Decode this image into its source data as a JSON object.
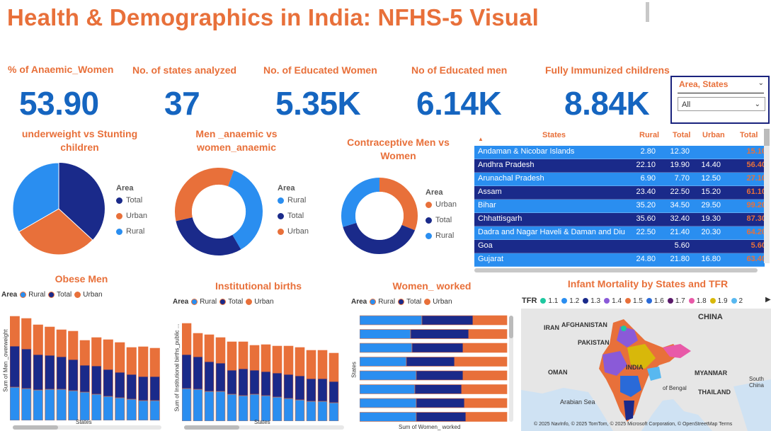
{
  "title": "Health & Demographics in India: NFHS-5 Visual",
  "kpis": [
    {
      "label": "% of Anaemic_Women",
      "value": "53.90"
    },
    {
      "label": "No. of states analyzed",
      "value": "37"
    },
    {
      "label": "No. of Educated Women",
      "value": "5.35K"
    },
    {
      "label": "No of Educated men",
      "value": "6.14K"
    },
    {
      "label": "Fully Immunized childrens",
      "value": "8.84K"
    }
  ],
  "slicer": {
    "header": "Area, States",
    "selected": "All"
  },
  "colors": {
    "orange": "#E8703A",
    "navy": "#1a2a8a",
    "blue": "#2a8ef0",
    "title_blue": "#1565C0"
  },
  "donuts": [
    {
      "title": "underweight vs Stunting children",
      "legend_title": "Area",
      "legend": [
        {
          "name": "Total",
          "color": "#1a2a8a"
        },
        {
          "name": "Urban",
          "color": "#E8703A"
        },
        {
          "name": "Rural",
          "color": "#2a8ef0"
        }
      ]
    },
    {
      "title": "Men _anaemic vs women_anaemic",
      "legend_title": "Area",
      "legend": [
        {
          "name": "Rural",
          "color": "#2a8ef0"
        },
        {
          "name": "Total",
          "color": "#1a2a8a"
        },
        {
          "name": "Urban",
          "color": "#E8703A"
        }
      ]
    },
    {
      "title": "Contraceptive Men vs Women",
      "legend_title": "Area",
      "legend": [
        {
          "name": "Urban",
          "color": "#E8703A"
        },
        {
          "name": "Total",
          "color": "#1a2a8a"
        },
        {
          "name": "Rural",
          "color": "#2a8ef0"
        }
      ]
    }
  ],
  "table": {
    "headers": [
      "States",
      "Rural",
      "Total",
      "Urban",
      "Total"
    ],
    "rows": [
      {
        "state": "Andaman & Nicobar Islands",
        "rural": "2.80",
        "total": "12.30",
        "urban": "",
        "total2": "15.10"
      },
      {
        "state": "Andhra Pradesh",
        "rural": "22.10",
        "total": "19.90",
        "urban": "14.40",
        "total2": "56.40"
      },
      {
        "state": "Arunachal Pradesh",
        "rural": "6.90",
        "total": "7.70",
        "urban": "12.50",
        "total2": "27.10"
      },
      {
        "state": "Assam",
        "rural": "23.40",
        "total": "22.50",
        "urban": "15.20",
        "total2": "61.10"
      },
      {
        "state": "Bihar",
        "rural": "35.20",
        "total": "34.50",
        "urban": "29.50",
        "total2": "99.20"
      },
      {
        "state": "Chhattisgarh",
        "rural": "35.60",
        "total": "32.40",
        "urban": "19.30",
        "total2": "87.30"
      },
      {
        "state": "Dadra and Nagar Haveli & Daman and Diu",
        "rural": "22.50",
        "total": "21.40",
        "urban": "20.30",
        "total2": "64.20"
      },
      {
        "state": "Goa",
        "rural": "",
        "total": "5.60",
        "urban": "",
        "total2": "5.60"
      },
      {
        "state": "Gujarat",
        "rural": "24.80",
        "total": "21.80",
        "urban": "16.80",
        "total2": "63.40"
      }
    ]
  },
  "bar_charts": [
    {
      "title": "Obese Men",
      "legend_title": "Area",
      "legend": [
        "Rural",
        "Total",
        "Urban"
      ],
      "ylabel": "Sum of Men _overweight",
      "xlabel": "States"
    },
    {
      "title": "Institutional births",
      "legend_title": "Area",
      "legend": [
        "Rural",
        "Total",
        "Urban"
      ],
      "ylabel": "Sum of Institutional births_public ...",
      "xlabel": "States"
    },
    {
      "title": "Women_ worked",
      "legend_title": "Area",
      "legend": [
        "Rural",
        "Total",
        "Urban"
      ],
      "ylabel": "States",
      "xlabel": "Sum of Women_ worked"
    }
  ],
  "chart_data": [
    {
      "type": "pie",
      "title": "underweight vs Stunting children",
      "series": [
        {
          "name": "Total",
          "values": [
            33.3
          ]
        },
        {
          "name": "Urban",
          "values": [
            30.0
          ]
        },
        {
          "name": "Rural",
          "values": [
            36.7
          ]
        }
      ]
    },
    {
      "type": "pie",
      "title": "Men _anaemic vs women_anaemic",
      "series": [
        {
          "name": "Rural",
          "values": [
            36
          ]
        },
        {
          "name": "Total",
          "values": [
            30
          ]
        },
        {
          "name": "Urban",
          "values": [
            34
          ]
        }
      ]
    },
    {
      "type": "pie",
      "title": "Contraceptive Men vs Women",
      "series": [
        {
          "name": "Urban",
          "values": [
            31
          ]
        },
        {
          "name": "Total",
          "values": [
            39
          ]
        },
        {
          "name": "Rural",
          "values": [
            30
          ]
        }
      ]
    }
  ],
  "map": {
    "title": "Infant Mortality by States and TFR",
    "legend_title": "TFR",
    "tfr": [
      {
        "label": "1.1",
        "color": "#1ec8a0"
      },
      {
        "label": "1.2",
        "color": "#2a8ef0"
      },
      {
        "label": "1.3",
        "color": "#1a2a8a"
      },
      {
        "label": "1.4",
        "color": "#8a5ad8"
      },
      {
        "label": "1.5",
        "color": "#E8703A"
      },
      {
        "label": "1.6",
        "color": "#2a6ad8"
      },
      {
        "label": "1.7",
        "color": "#5a1a6a"
      },
      {
        "label": "1.8",
        "color": "#e85aa8"
      },
      {
        "label": "1.9",
        "color": "#d8b80a"
      },
      {
        "label": "2",
        "color": "#58b8f0"
      }
    ],
    "labels": {
      "china": "CHINA",
      "iran": "IRAN",
      "afghanistan": "AFGHANISTAN",
      "pakistan": "PAKISTAN",
      "india": "INDIA",
      "oman": "OMAN",
      "myanmar": "MYANMAR",
      "thailand": "THAILAND",
      "arabian_sea": "Arabian Sea",
      "south_china": "South China",
      "bay": "of Bengal"
    },
    "copyright": "© 2025 NavInfo, © 2025 TomTom, © 2025 Microsoft Corporation, © OpenStreetMap  Terms"
  }
}
